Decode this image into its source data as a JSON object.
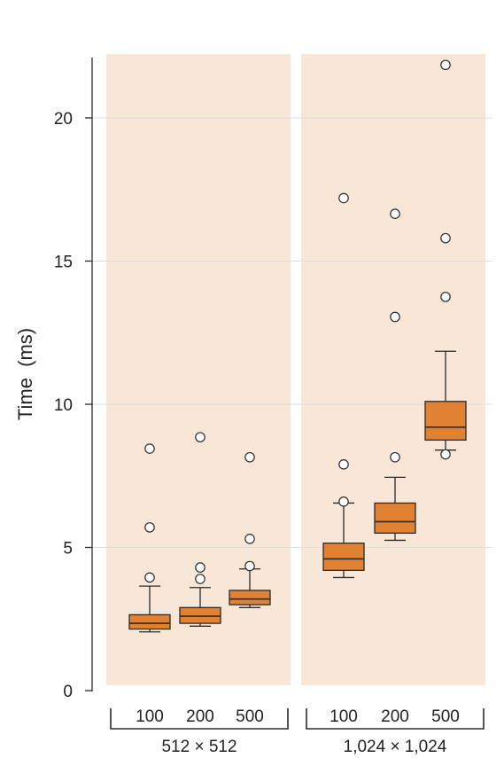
{
  "chart_data": {
    "type": "box",
    "ylabel": "Time  (ms)",
    "ylim": [
      0,
      22.5
    ],
    "yticks": [
      "0",
      "5",
      "10",
      "15",
      "20"
    ],
    "grid": true,
    "colors": {
      "panel": "#f8e6d6",
      "box": "#e08133",
      "line": "#2b2b2b",
      "grid": "#dddddd"
    },
    "groups": [
      {
        "name": "512 × 512",
        "boxes": [
          {
            "label": "100",
            "whisker_low": 2.05,
            "q1": 2.15,
            "median": 2.35,
            "q3": 2.65,
            "whisker_high": 3.65,
            "outliers": [
              3.95,
              5.7,
              8.45
            ]
          },
          {
            "label": "200",
            "whisker_low": 2.25,
            "q1": 2.35,
            "median": 2.6,
            "q3": 2.9,
            "whisker_high": 3.6,
            "outliers": [
              3.9,
              4.3,
              8.85
            ]
          },
          {
            "label": "500",
            "whisker_low": 2.9,
            "q1": 3.0,
            "median": 3.2,
            "q3": 3.5,
            "whisker_high": 4.25,
            "outliers": [
              4.35,
              5.3,
              8.15
            ]
          }
        ]
      },
      {
        "name": "1,024 × 1,024",
        "boxes": [
          {
            "label": "100",
            "whisker_low": 3.95,
            "q1": 4.2,
            "median": 4.6,
            "q3": 5.15,
            "whisker_high": 6.55,
            "outliers": [
              6.6,
              7.9,
              17.2
            ]
          },
          {
            "label": "200",
            "whisker_low": 5.25,
            "q1": 5.5,
            "median": 5.9,
            "q3": 6.55,
            "whisker_high": 7.45,
            "outliers": [
              8.15,
              13.05,
              16.65
            ]
          },
          {
            "label": "500",
            "whisker_low": 8.4,
            "q1": 8.75,
            "median": 9.2,
            "q3": 10.1,
            "whisker_high": 11.85,
            "outliers": [
              8.25,
              13.75,
              15.8,
              21.85
            ]
          }
        ]
      }
    ]
  }
}
